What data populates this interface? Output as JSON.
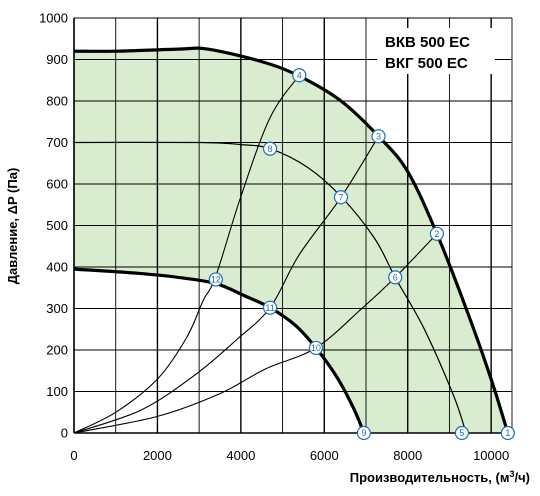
{
  "chart_data": {
    "type": "line",
    "models": [
      "ВКВ 500 ЕС",
      "ВКГ 500 ЕС"
    ],
    "xlabel": "Производительность, (м³/ч)",
    "xlabel_parts": {
      "text": "Производительность, (м",
      "sup": "3",
      "suffix": "/ч)"
    },
    "ylabel": "Давление, ΔP (Па)",
    "xlim": [
      0,
      10500
    ],
    "ylim": [
      0,
      1000
    ],
    "x_ticks": [
      0,
      2000,
      4000,
      6000,
      8000,
      10000
    ],
    "y_ticks": [
      0,
      100,
      200,
      300,
      400,
      500,
      600,
      700,
      800,
      900,
      1000
    ],
    "x_tick_labels": [
      "0",
      "2000",
      "4000",
      "6000",
      "8000",
      "10000"
    ],
    "y_tick_labels": [
      "0",
      "100",
      "200",
      "300",
      "400",
      "500",
      "600",
      "700",
      "800",
      "900",
      "1000"
    ],
    "x_minor_step": 1000,
    "grid": true,
    "colors": {
      "fill": "#d9ecd0",
      "curve": "#000000",
      "marker_stroke": "#1f6fb2",
      "marker_fill": "#ffffff"
    },
    "fan_curves": [
      {
        "id": "max",
        "style": "thick",
        "points": [
          [
            0,
            920
          ],
          [
            1000,
            920
          ],
          [
            2500,
            925
          ],
          [
            3200,
            925
          ],
          [
            4500,
            895
          ],
          [
            5400,
            860
          ],
          [
            6400,
            800
          ],
          [
            7300,
            715
          ],
          [
            8000,
            630
          ],
          [
            8700,
            480
          ],
          [
            9400,
            300
          ],
          [
            10000,
            130
          ],
          [
            10400,
            0
          ]
        ]
      },
      {
        "id": "mid",
        "style": "thin",
        "points": [
          [
            0,
            700
          ],
          [
            3000,
            700
          ],
          [
            4000,
            695
          ],
          [
            4700,
            685
          ],
          [
            5600,
            640
          ],
          [
            6400,
            570
          ],
          [
            7200,
            470
          ],
          [
            7700,
            375
          ],
          [
            8400,
            250
          ],
          [
            9100,
            90
          ],
          [
            9400,
            0
          ]
        ]
      },
      {
        "id": "min",
        "style": "thick",
        "points": [
          [
            0,
            395
          ],
          [
            1500,
            385
          ],
          [
            2500,
            375
          ],
          [
            3400,
            360
          ],
          [
            4100,
            330
          ],
          [
            4700,
            302
          ],
          [
            5300,
            260
          ],
          [
            5800,
            205
          ],
          [
            6300,
            135
          ],
          [
            6700,
            60
          ],
          [
            6950,
            0
          ]
        ]
      }
    ],
    "system_curves": [
      {
        "id": "s1",
        "points": [
          [
            0,
            0
          ],
          [
            1000,
            50
          ],
          [
            2000,
            130
          ],
          [
            2700,
            230
          ],
          [
            3100,
            320
          ],
          [
            3400,
            378
          ],
          [
            4000,
            570
          ],
          [
            4700,
            760
          ],
          [
            5400,
            862
          ]
        ]
      },
      {
        "id": "s2",
        "points": [
          [
            0,
            0
          ],
          [
            1600,
            55
          ],
          [
            2900,
            140
          ],
          [
            3900,
            225
          ],
          [
            4700,
            302
          ],
          [
            5400,
            430
          ],
          [
            6400,
            568
          ],
          [
            7300,
            715
          ]
        ]
      },
      {
        "id": "s3",
        "points": [
          [
            0,
            0
          ],
          [
            2000,
            40
          ],
          [
            3500,
            95
          ],
          [
            4600,
            155
          ],
          [
            5800,
            205
          ],
          [
            6900,
            300
          ],
          [
            7700,
            375
          ],
          [
            8700,
            480
          ]
        ]
      }
    ],
    "points": [
      {
        "label": "1",
        "x": 10400,
        "y": 0
      },
      {
        "label": "2",
        "x": 8700,
        "y": 480
      },
      {
        "label": "3",
        "x": 7300,
        "y": 715
      },
      {
        "label": "4",
        "x": 5400,
        "y": 862
      },
      {
        "label": "5",
        "x": 9300,
        "y": 0
      },
      {
        "label": "6",
        "x": 7700,
        "y": 375
      },
      {
        "label": "7",
        "x": 6400,
        "y": 568
      },
      {
        "label": "8",
        "x": 4700,
        "y": 685
      },
      {
        "label": "9",
        "x": 6950,
        "y": 0
      },
      {
        "label": "10",
        "x": 5800,
        "y": 205
      },
      {
        "label": "11",
        "x": 4700,
        "y": 302
      },
      {
        "label": "12",
        "x": 3400,
        "y": 370
      }
    ]
  }
}
